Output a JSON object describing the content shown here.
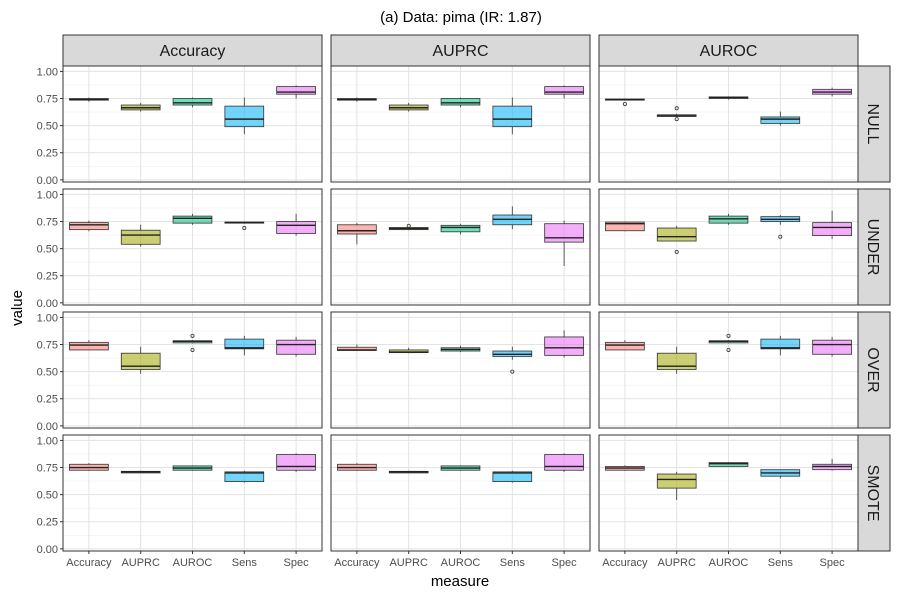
{
  "chart_data": {
    "type": "boxplot",
    "title": "(a) Data: pima (IR: 1.87)",
    "xlabel": "measure",
    "ylabel": "value",
    "ylim": [
      -0.02,
      1.05
    ],
    "yticks": [
      "0.00",
      "0.25",
      "0.50",
      "0.75",
      "1.00"
    ],
    "ytick_values": [
      0,
      0.25,
      0.5,
      0.75,
      1.0
    ],
    "columns": [
      "Accuracy",
      "AUPRC",
      "AUROC"
    ],
    "rows": [
      "NULL",
      "UNDER",
      "OVER",
      "SMOTE"
    ],
    "categories": [
      "Accuracy",
      "AUPRC",
      "AUROC",
      "Sens",
      "Spec"
    ],
    "fill_colors": [
      "#F8766D",
      "#A3A500",
      "#00BF7D",
      "#00B0F6",
      "#E76BF3"
    ],
    "panel_strip_color": "#D9D9D9",
    "grid": true,
    "panels": [
      {
        "row": 0,
        "col": 0,
        "boxes": [
          {
            "min": 0.72,
            "q1": 0.735,
            "median": 0.74,
            "q3": 0.75,
            "max": 0.76,
            "outliers": []
          },
          {
            "min": 0.63,
            "q1": 0.645,
            "median": 0.665,
            "q3": 0.69,
            "max": 0.71,
            "outliers": []
          },
          {
            "min": 0.67,
            "q1": 0.69,
            "median": 0.71,
            "q3": 0.75,
            "max": 0.76,
            "outliers": []
          },
          {
            "min": 0.42,
            "q1": 0.49,
            "median": 0.56,
            "q3": 0.68,
            "max": 0.76,
            "outliers": []
          },
          {
            "min": 0.75,
            "q1": 0.79,
            "median": 0.81,
            "q3": 0.86,
            "max": 0.87,
            "outliers": []
          }
        ]
      },
      {
        "row": 0,
        "col": 1,
        "boxes": [
          {
            "min": 0.72,
            "q1": 0.735,
            "median": 0.74,
            "q3": 0.75,
            "max": 0.76,
            "outliers": []
          },
          {
            "min": 0.63,
            "q1": 0.645,
            "median": 0.665,
            "q3": 0.69,
            "max": 0.71,
            "outliers": []
          },
          {
            "min": 0.67,
            "q1": 0.69,
            "median": 0.71,
            "q3": 0.75,
            "max": 0.76,
            "outliers": []
          },
          {
            "min": 0.42,
            "q1": 0.49,
            "median": 0.56,
            "q3": 0.68,
            "max": 0.76,
            "outliers": []
          },
          {
            "min": 0.75,
            "q1": 0.79,
            "median": 0.81,
            "q3": 0.86,
            "max": 0.87,
            "outliers": []
          }
        ]
      },
      {
        "row": 0,
        "col": 2,
        "boxes": [
          {
            "min": 0.73,
            "q1": 0.735,
            "median": 0.74,
            "q3": 0.745,
            "max": 0.75,
            "outliers": [
              0.7
            ]
          },
          {
            "min": 0.58,
            "q1": 0.585,
            "median": 0.59,
            "q3": 0.6,
            "max": 0.61,
            "outliers": [
              0.66,
              0.56
            ]
          },
          {
            "min": 0.74,
            "q1": 0.75,
            "median": 0.76,
            "q3": 0.765,
            "max": 0.77,
            "outliers": []
          },
          {
            "min": 0.5,
            "q1": 0.52,
            "median": 0.56,
            "q3": 0.58,
            "max": 0.63,
            "outliers": []
          },
          {
            "min": 0.77,
            "q1": 0.79,
            "median": 0.81,
            "q3": 0.835,
            "max": 0.85,
            "outliers": []
          }
        ]
      },
      {
        "row": 1,
        "col": 0,
        "boxes": [
          {
            "min": 0.66,
            "q1": 0.675,
            "median": 0.72,
            "q3": 0.74,
            "max": 0.76,
            "outliers": []
          },
          {
            "min": 0.52,
            "q1": 0.54,
            "median": 0.625,
            "q3": 0.67,
            "max": 0.72,
            "outliers": []
          },
          {
            "min": 0.72,
            "q1": 0.735,
            "median": 0.78,
            "q3": 0.8,
            "max": 0.82,
            "outliers": []
          },
          {
            "min": 0.73,
            "q1": 0.735,
            "median": 0.74,
            "q3": 0.745,
            "max": 0.75,
            "outliers": [
              0.69
            ]
          },
          {
            "min": 0.62,
            "q1": 0.64,
            "median": 0.715,
            "q3": 0.75,
            "max": 0.82,
            "outliers": []
          }
        ]
      },
      {
        "row": 1,
        "col": 1,
        "boxes": [
          {
            "min": 0.54,
            "q1": 0.635,
            "median": 0.665,
            "q3": 0.72,
            "max": 0.74,
            "outliers": []
          },
          {
            "min": 0.67,
            "q1": 0.675,
            "median": 0.685,
            "q3": 0.695,
            "max": 0.7,
            "outliers": [
              0.71
            ]
          },
          {
            "min": 0.63,
            "q1": 0.655,
            "median": 0.695,
            "q3": 0.715,
            "max": 0.73,
            "outliers": []
          },
          {
            "min": 0.68,
            "q1": 0.72,
            "median": 0.77,
            "q3": 0.81,
            "max": 0.89,
            "outliers": []
          },
          {
            "min": 0.34,
            "q1": 0.56,
            "median": 0.6,
            "q3": 0.73,
            "max": 0.76,
            "outliers": []
          }
        ]
      },
      {
        "row": 1,
        "col": 2,
        "boxes": [
          {
            "min": 0.66,
            "q1": 0.665,
            "median": 0.73,
            "q3": 0.745,
            "max": 0.75,
            "outliers": []
          },
          {
            "min": 0.57,
            "q1": 0.57,
            "median": 0.61,
            "q3": 0.69,
            "max": 0.71,
            "outliers": [
              0.47
            ]
          },
          {
            "min": 0.72,
            "q1": 0.735,
            "median": 0.775,
            "q3": 0.8,
            "max": 0.82,
            "outliers": []
          },
          {
            "min": 0.72,
            "q1": 0.75,
            "median": 0.77,
            "q3": 0.795,
            "max": 0.81,
            "outliers": [
              0.61
            ]
          },
          {
            "min": 0.59,
            "q1": 0.62,
            "median": 0.695,
            "q3": 0.74,
            "max": 0.85,
            "outliers": []
          }
        ]
      },
      {
        "row": 2,
        "col": 0,
        "boxes": [
          {
            "min": 0.7,
            "q1": 0.7,
            "median": 0.745,
            "q3": 0.77,
            "max": 0.79,
            "outliers": []
          },
          {
            "min": 0.48,
            "q1": 0.52,
            "median": 0.55,
            "q3": 0.67,
            "max": 0.73,
            "outliers": []
          },
          {
            "min": 0.76,
            "q1": 0.765,
            "median": 0.78,
            "q3": 0.785,
            "max": 0.79,
            "outliers": [
              0.83,
              0.7
            ]
          },
          {
            "min": 0.65,
            "q1": 0.71,
            "median": 0.72,
            "q3": 0.8,
            "max": 0.83,
            "outliers": []
          },
          {
            "min": 0.64,
            "q1": 0.66,
            "median": 0.75,
            "q3": 0.79,
            "max": 0.82,
            "outliers": []
          }
        ]
      },
      {
        "row": 2,
        "col": 1,
        "boxes": [
          {
            "min": 0.69,
            "q1": 0.695,
            "median": 0.7,
            "q3": 0.725,
            "max": 0.75,
            "outliers": []
          },
          {
            "min": 0.67,
            "q1": 0.675,
            "median": 0.68,
            "q3": 0.7,
            "max": 0.72,
            "outliers": []
          },
          {
            "min": 0.68,
            "q1": 0.69,
            "median": 0.705,
            "q3": 0.72,
            "max": 0.74,
            "outliers": []
          },
          {
            "min": 0.61,
            "q1": 0.64,
            "median": 0.66,
            "q3": 0.69,
            "max": 0.73,
            "outliers": [
              0.5
            ]
          },
          {
            "min": 0.63,
            "q1": 0.65,
            "median": 0.72,
            "q3": 0.82,
            "max": 0.88,
            "outliers": []
          }
        ]
      },
      {
        "row": 2,
        "col": 2,
        "boxes": [
          {
            "min": 0.7,
            "q1": 0.7,
            "median": 0.745,
            "q3": 0.77,
            "max": 0.79,
            "outliers": []
          },
          {
            "min": 0.48,
            "q1": 0.52,
            "median": 0.55,
            "q3": 0.67,
            "max": 0.73,
            "outliers": []
          },
          {
            "min": 0.76,
            "q1": 0.765,
            "median": 0.78,
            "q3": 0.785,
            "max": 0.79,
            "outliers": [
              0.83,
              0.7
            ]
          },
          {
            "min": 0.65,
            "q1": 0.71,
            "median": 0.72,
            "q3": 0.8,
            "max": 0.83,
            "outliers": []
          },
          {
            "min": 0.64,
            "q1": 0.66,
            "median": 0.75,
            "q3": 0.79,
            "max": 0.82,
            "outliers": []
          }
        ]
      },
      {
        "row": 3,
        "col": 0,
        "boxes": [
          {
            "min": 0.72,
            "q1": 0.725,
            "median": 0.75,
            "q3": 0.78,
            "max": 0.79,
            "outliers": []
          },
          {
            "min": 0.7,
            "q1": 0.7,
            "median": 0.71,
            "q3": 0.715,
            "max": 0.72,
            "outliers": []
          },
          {
            "min": 0.72,
            "q1": 0.725,
            "median": 0.745,
            "q3": 0.765,
            "max": 0.77,
            "outliers": []
          },
          {
            "min": 0.61,
            "q1": 0.62,
            "median": 0.7,
            "q3": 0.71,
            "max": 0.72,
            "outliers": []
          },
          {
            "min": 0.71,
            "q1": 0.725,
            "median": 0.76,
            "q3": 0.87,
            "max": 0.88,
            "outliers": []
          }
        ]
      },
      {
        "row": 3,
        "col": 1,
        "boxes": [
          {
            "min": 0.72,
            "q1": 0.725,
            "median": 0.75,
            "q3": 0.78,
            "max": 0.79,
            "outliers": []
          },
          {
            "min": 0.7,
            "q1": 0.7,
            "median": 0.71,
            "q3": 0.715,
            "max": 0.72,
            "outliers": []
          },
          {
            "min": 0.72,
            "q1": 0.725,
            "median": 0.745,
            "q3": 0.765,
            "max": 0.77,
            "outliers": []
          },
          {
            "min": 0.61,
            "q1": 0.62,
            "median": 0.7,
            "q3": 0.71,
            "max": 0.72,
            "outliers": []
          },
          {
            "min": 0.71,
            "q1": 0.725,
            "median": 0.76,
            "q3": 0.87,
            "max": 0.88,
            "outliers": []
          }
        ]
      },
      {
        "row": 3,
        "col": 2,
        "boxes": [
          {
            "min": 0.72,
            "q1": 0.725,
            "median": 0.745,
            "q3": 0.76,
            "max": 0.77,
            "outliers": []
          },
          {
            "min": 0.45,
            "q1": 0.56,
            "median": 0.64,
            "q3": 0.69,
            "max": 0.71,
            "outliers": []
          },
          {
            "min": 0.76,
            "q1": 0.76,
            "median": 0.785,
            "q3": 0.795,
            "max": 0.8,
            "outliers": []
          },
          {
            "min": 0.65,
            "q1": 0.67,
            "median": 0.7,
            "q3": 0.73,
            "max": 0.73,
            "outliers": []
          },
          {
            "min": 0.72,
            "q1": 0.73,
            "median": 0.76,
            "q3": 0.78,
            "max": 0.83,
            "outliers": []
          }
        ]
      }
    ]
  }
}
